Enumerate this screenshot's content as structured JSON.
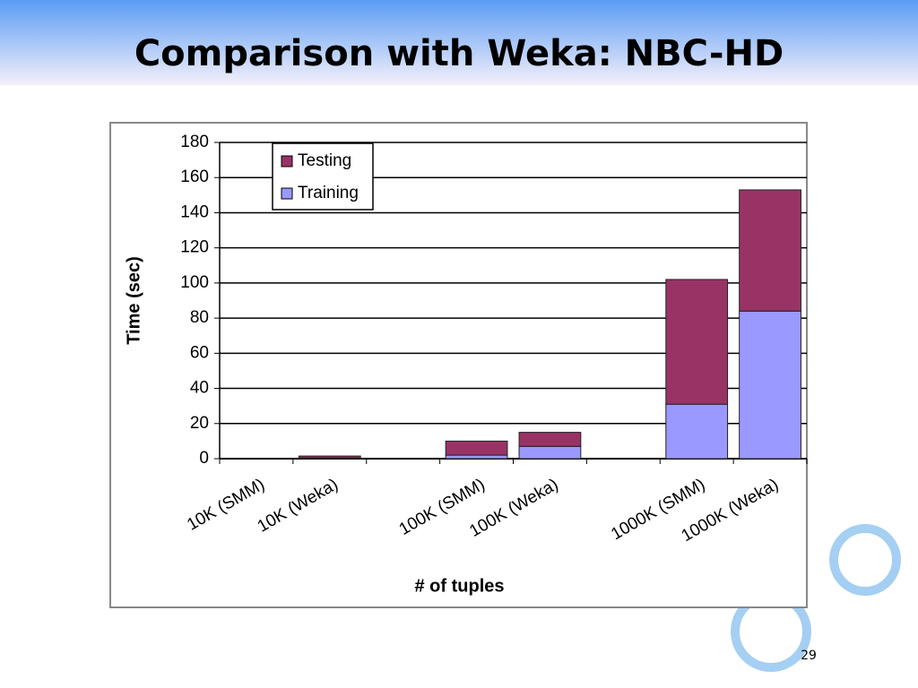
{
  "slide_title": "Comparison with Weka: NBC-HD",
  "page_number": "29",
  "chart_data": {
    "type": "stacked_bar",
    "x_label": "# of tuples",
    "y_label": "Time (sec)",
    "categories": [
      "10K (SMM)",
      "10K (Weka)",
      null,
      "100K (SMM)",
      "100K (Weka)",
      null,
      "1000K (SMM)",
      "1000K (Weka)"
    ],
    "series": [
      {
        "name": "Testing",
        "color": "#993366",
        "values": [
          0,
          1,
          null,
          8,
          8,
          null,
          71,
          69
        ]
      },
      {
        "name": "Training",
        "color": "#9999ff",
        "values": [
          0,
          0.5,
          null,
          2,
          7,
          null,
          31,
          84
        ]
      }
    ],
    "ylim": [
      0,
      180
    ],
    "yticks": [
      0,
      20,
      40,
      60,
      80,
      100,
      120,
      140,
      160,
      180
    ],
    "grid": true,
    "legend": "top-left"
  }
}
